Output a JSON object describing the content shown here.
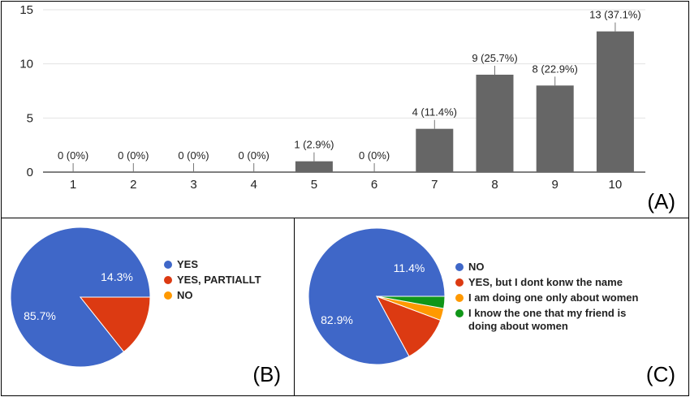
{
  "chart_data": [
    {
      "type": "bar",
      "categories": [
        "1",
        "2",
        "3",
        "4",
        "5",
        "6",
        "7",
        "8",
        "9",
        "10"
      ],
      "values": [
        0,
        0,
        0,
        0,
        1,
        0,
        4,
        9,
        8,
        13
      ],
      "data_labels": [
        "0 (0%)",
        "0 (0%)",
        "0 (0%)",
        "0 (0%)",
        "1 (2.9%)",
        "0 (0%)",
        "4 (11.4%)",
        "9 (25.7%)",
        "8 (22.9%)",
        "13 (37.1%)"
      ],
      "ylim": [
        0,
        15
      ],
      "yticks": [
        "0",
        "5",
        "10",
        "15"
      ],
      "grid": true,
      "bar_color": "#666666",
      "panel_label": "(A)"
    },
    {
      "type": "pie",
      "labels": [
        "YES",
        "YES, PARTIALLT",
        "NO"
      ],
      "values": [
        85.7,
        14.3,
        0
      ],
      "slice_labels": [
        "85.7%",
        "14.3%",
        ""
      ],
      "colors": [
        "#3f67c8",
        "#dc3a12",
        "#ff9900"
      ],
      "legend": "right",
      "panel_label": "(B)"
    },
    {
      "type": "pie",
      "labels": [
        "NO",
        "YES, but I dont konw the name",
        "I am doing one only about women",
        "I know the one that my friend is doing about women"
      ],
      "values": [
        82.9,
        11.4,
        2.85,
        2.85
      ],
      "slice_labels": [
        "82.9%",
        "11.4%",
        "",
        ""
      ],
      "colors": [
        "#3f67c8",
        "#dc3a12",
        "#ff9900",
        "#109618"
      ],
      "legend": "right",
      "panel_label": "(C)"
    }
  ]
}
